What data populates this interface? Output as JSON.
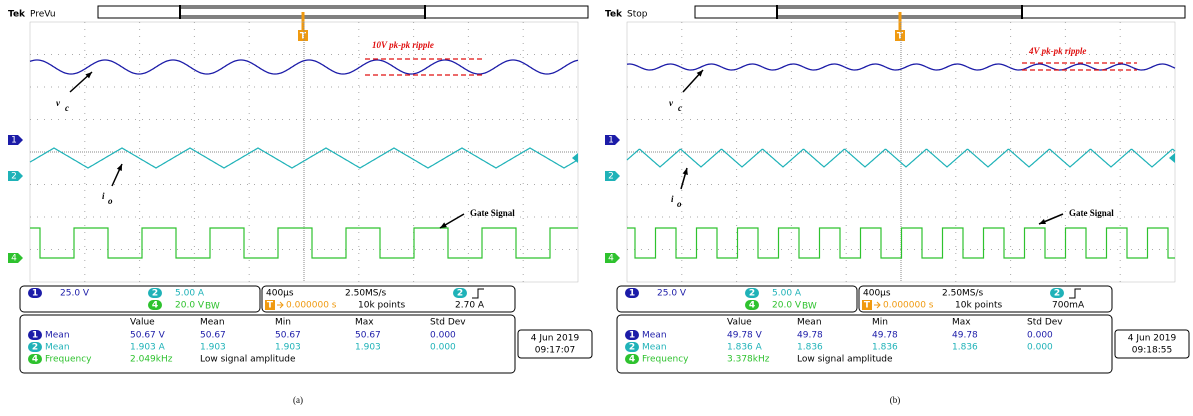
{
  "panels": [
    {
      "brand": "Tek",
      "status": "PreVu",
      "trigger": "T",
      "ripple_label": "10V pk-pk ripple",
      "vc_label": "v",
      "vc_sub": "c",
      "io_label": "i",
      "io_sub": "o",
      "gate_label": "Gate Signal",
      "channel_markers": [
        "1",
        "2",
        "4"
      ],
      "settings": {
        "ch1": "1",
        "ch1_scale": "25.0 V",
        "ch2": "2",
        "ch2_scale": "5.00 A",
        "ch4": "4",
        "ch4_scale": "20.0 V",
        "bw": "BW",
        "timebase": "400µs",
        "sample_rate": "2.50MS/s",
        "trigger_icon": "T",
        "trigger_pos": "0.000000 s",
        "record": "10k points",
        "trigger_source": "2",
        "trigger_level": "2.70 A"
      },
      "measurements": {
        "headers": [
          "Value",
          "Mean",
          "Min",
          "Max",
          "Std Dev"
        ],
        "rows": [
          {
            "channel": "1",
            "name": "Mean",
            "cells": [
              "50.67 V",
              "50.67",
              "50.67",
              "50.67",
              "0.000"
            ]
          },
          {
            "channel": "2",
            "name": "Mean",
            "cells": [
              "1.903 A",
              "1.903",
              "1.903",
              "1.903",
              "0.000"
            ]
          },
          {
            "channel": "4",
            "name": "Frequency",
            "cells": [
              "2.049kHz",
              "Low signal amplitude"
            ]
          }
        ]
      },
      "date": "4 Jun 2019",
      "time": "09:17:07",
      "caption": "(a)"
    },
    {
      "brand": "Tek",
      "status": "Stop",
      "trigger": "T",
      "ripple_label": "4V pk-pk ripple",
      "vc_label": "v",
      "vc_sub": "c",
      "io_label": "i",
      "io_sub": "o",
      "gate_label": "Gate Signal",
      "channel_markers": [
        "1",
        "2",
        "4"
      ],
      "settings": {
        "ch1": "1",
        "ch1_scale": "25.0 V",
        "ch2": "2",
        "ch2_scale": "5.00 A",
        "ch4": "4",
        "ch4_scale": "20.0 V",
        "bw": "BW",
        "timebase": "400µs",
        "sample_rate": "2.50MS/s",
        "trigger_icon": "T",
        "trigger_pos": "0.000000 s",
        "record": "10k points",
        "trigger_source": "2",
        "trigger_level": "700mA"
      },
      "measurements": {
        "headers": [
          "Value",
          "Mean",
          "Min",
          "Max",
          "Std Dev"
        ],
        "rows": [
          {
            "channel": "1",
            "name": "Mean",
            "cells": [
              "49.78 V",
              "49.78",
              "49.78",
              "49.78",
              "0.000"
            ]
          },
          {
            "channel": "2",
            "name": "Mean",
            "cells": [
              "1.836 A",
              "1.836",
              "1.836",
              "1.836",
              "0.000"
            ]
          },
          {
            "channel": "4",
            "name": "Frequency",
            "cells": [
              "3.378kHz",
              "Low signal amplitude"
            ]
          }
        ]
      },
      "date": "4 Jun 2019",
      "time": "09:18:55",
      "caption": "(b)"
    }
  ]
}
